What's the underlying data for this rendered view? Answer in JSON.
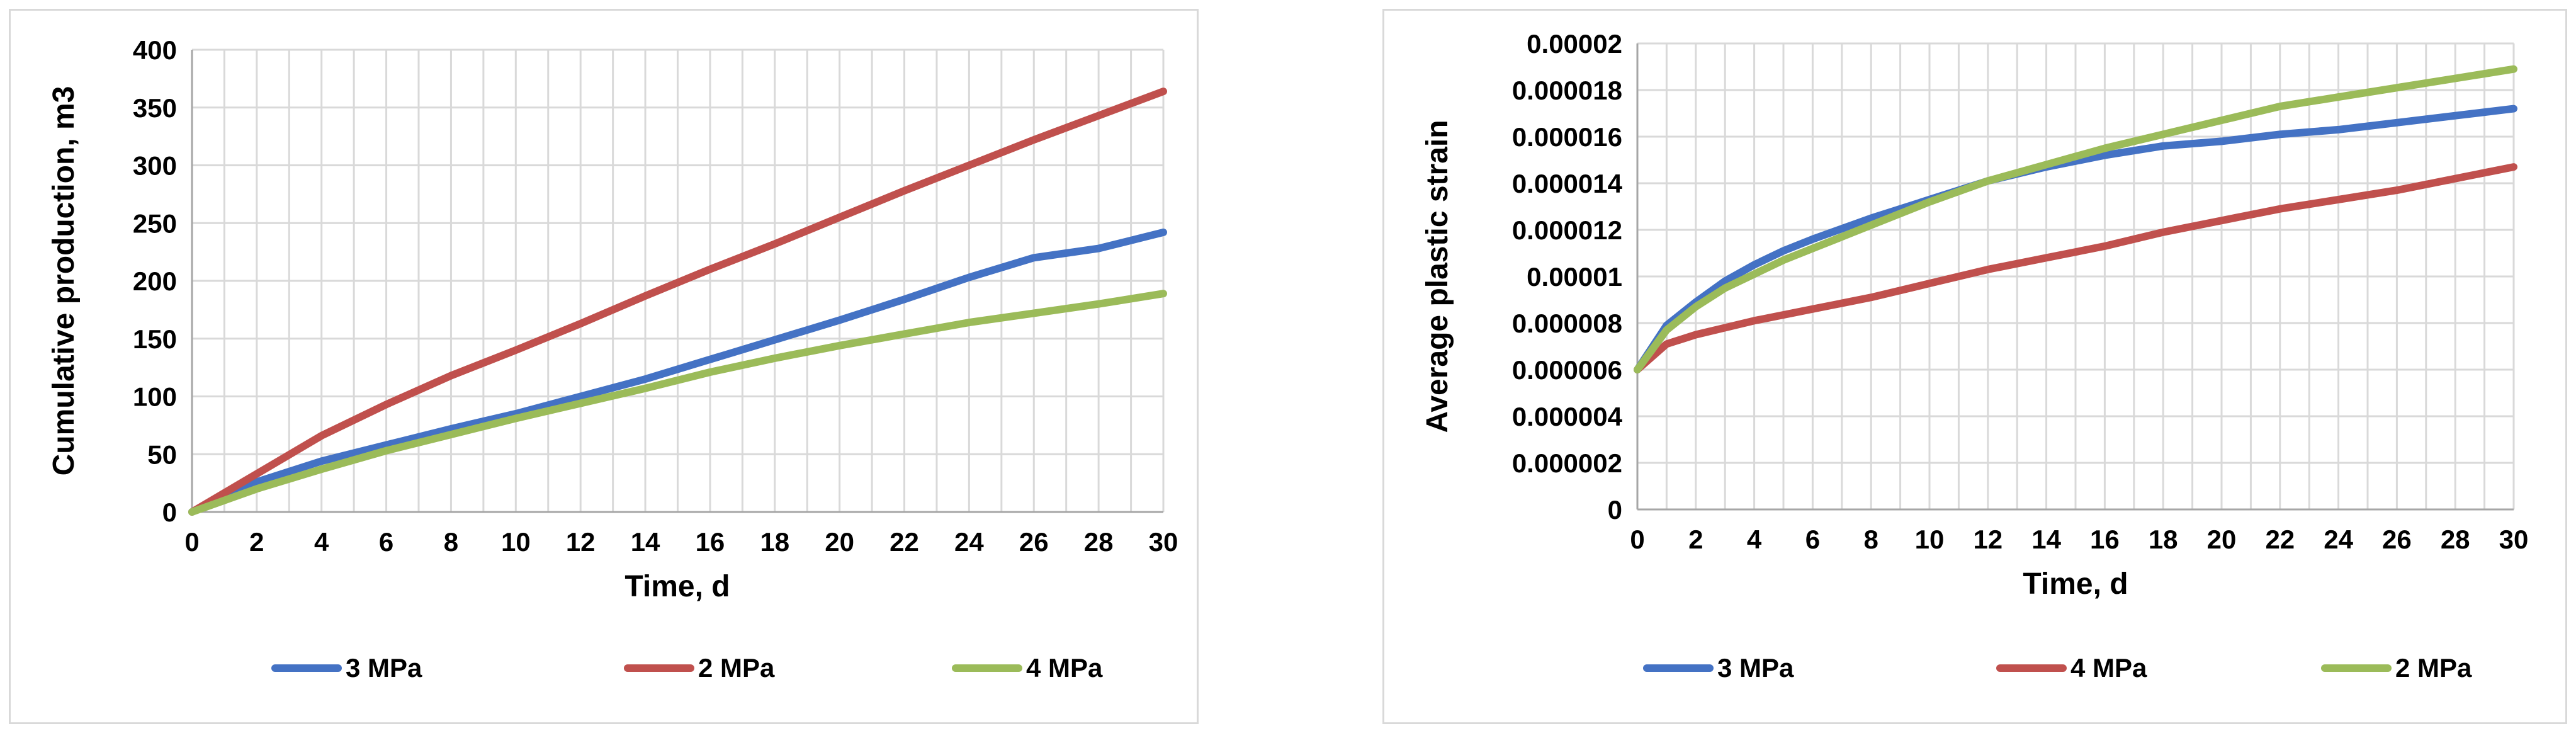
{
  "chart_data": [
    {
      "type": "line",
      "title": "",
      "xlabel": "Time, d",
      "ylabel": "Cumulative production, m3",
      "xlim": [
        0,
        30
      ],
      "ylim": [
        0,
        400
      ],
      "x_ticks": [
        0,
        2,
        4,
        6,
        8,
        10,
        12,
        14,
        16,
        18,
        20,
        22,
        24,
        26,
        28,
        30
      ],
      "y_ticks": [
        0,
        50,
        100,
        150,
        200,
        250,
        300,
        350,
        400
      ],
      "y_tick_labels": [
        "0",
        "50",
        "100",
        "150",
        "200",
        "250",
        "300",
        "350",
        "400"
      ],
      "grid": true,
      "legend_position": "bottom",
      "series": [
        {
          "name": "3 MPa",
          "color": "#4472c4",
          "x": [
            0,
            2,
            4,
            6,
            8,
            10,
            12,
            14,
            16,
            18,
            20,
            22,
            24,
            26,
            28,
            30
          ],
          "y": [
            0,
            26,
            44,
            58,
            72,
            85,
            100,
            115,
            132,
            149,
            166,
            184,
            203,
            220,
            228,
            242
          ]
        },
        {
          "name": "2 MPa",
          "color": "#c0504d",
          "x": [
            0,
            2,
            4,
            6,
            8,
            10,
            12,
            14,
            16,
            18,
            20,
            22,
            24,
            26,
            28,
            30
          ],
          "y": [
            0,
            33,
            66,
            93,
            118,
            140,
            163,
            187,
            210,
            232,
            255,
            278,
            300,
            322,
            343,
            364
          ]
        },
        {
          "name": "4 MPa",
          "color": "#9bbb59",
          "x": [
            0,
            2,
            4,
            6,
            8,
            10,
            12,
            14,
            16,
            18,
            20,
            22,
            24,
            26,
            28,
            30
          ],
          "y": [
            0,
            20,
            37,
            53,
            67,
            81,
            94,
            107,
            121,
            133,
            144,
            154,
            164,
            172,
            180,
            189
          ]
        }
      ]
    },
    {
      "type": "line",
      "title": "",
      "xlabel": "Time, d",
      "ylabel": "Average plastic strain",
      "xlim": [
        0,
        30
      ],
      "ylim": [
        0,
        2e-05
      ],
      "x_ticks": [
        0,
        2,
        4,
        6,
        8,
        10,
        12,
        14,
        16,
        18,
        20,
        22,
        24,
        26,
        28,
        30
      ],
      "y_ticks": [
        0,
        2e-06,
        4e-06,
        6e-06,
        8e-06,
        1e-05,
        1.2e-05,
        1.4e-05,
        1.6e-05,
        1.8e-05,
        2e-05
      ],
      "y_tick_labels": [
        "0",
        "0.000002",
        "0.000004",
        "0.000006",
        "0.000008",
        "0.00001",
        "0.000012",
        "0.000014",
        "0.000016",
        "0.000018",
        "0.00002"
      ],
      "grid": true,
      "legend_position": "bottom",
      "series": [
        {
          "name": "3 MPa",
          "color": "#4472c4",
          "x": [
            0,
            1,
            2,
            3,
            4,
            5,
            6,
            8,
            10,
            12,
            14,
            16,
            18,
            20,
            22,
            24,
            26,
            28,
            30
          ],
          "y": [
            6e-06,
            7.9e-06,
            8.9e-06,
            9.8e-06,
            1.05e-05,
            1.11e-05,
            1.16e-05,
            1.25e-05,
            1.33e-05,
            1.41e-05,
            1.47e-05,
            1.52e-05,
            1.56e-05,
            1.58e-05,
            1.61e-05,
            1.63e-05,
            1.66e-05,
            1.69e-05,
            1.72e-05
          ]
        },
        {
          "name": "4 MPa",
          "color": "#c0504d",
          "x": [
            0,
            1,
            2,
            3,
            4,
            6,
            8,
            10,
            12,
            14,
            16,
            18,
            20,
            22,
            24,
            26,
            28,
            30
          ],
          "y": [
            6e-06,
            7.1e-06,
            7.5e-06,
            7.8e-06,
            8.1e-06,
            8.6e-06,
            9.1e-06,
            9.7e-06,
            1.03e-05,
            1.08e-05,
            1.13e-05,
            1.19e-05,
            1.24e-05,
            1.29e-05,
            1.33e-05,
            1.37e-05,
            1.42e-05,
            1.47e-05
          ]
        },
        {
          "name": "2 MPa",
          "color": "#9bbb59",
          "x": [
            0,
            1,
            2,
            3,
            4,
            5,
            6,
            8,
            10,
            12,
            14,
            16,
            18,
            20,
            22,
            24,
            26,
            28,
            30
          ],
          "y": [
            6e-06,
            7.7e-06,
            8.7e-06,
            9.5e-06,
            1.01e-05,
            1.07e-05,
            1.12e-05,
            1.22e-05,
            1.32e-05,
            1.41e-05,
            1.48e-05,
            1.55e-05,
            1.61e-05,
            1.67e-05,
            1.73e-05,
            1.77e-05,
            1.81e-05,
            1.85e-05,
            1.89e-05
          ]
        }
      ]
    }
  ]
}
